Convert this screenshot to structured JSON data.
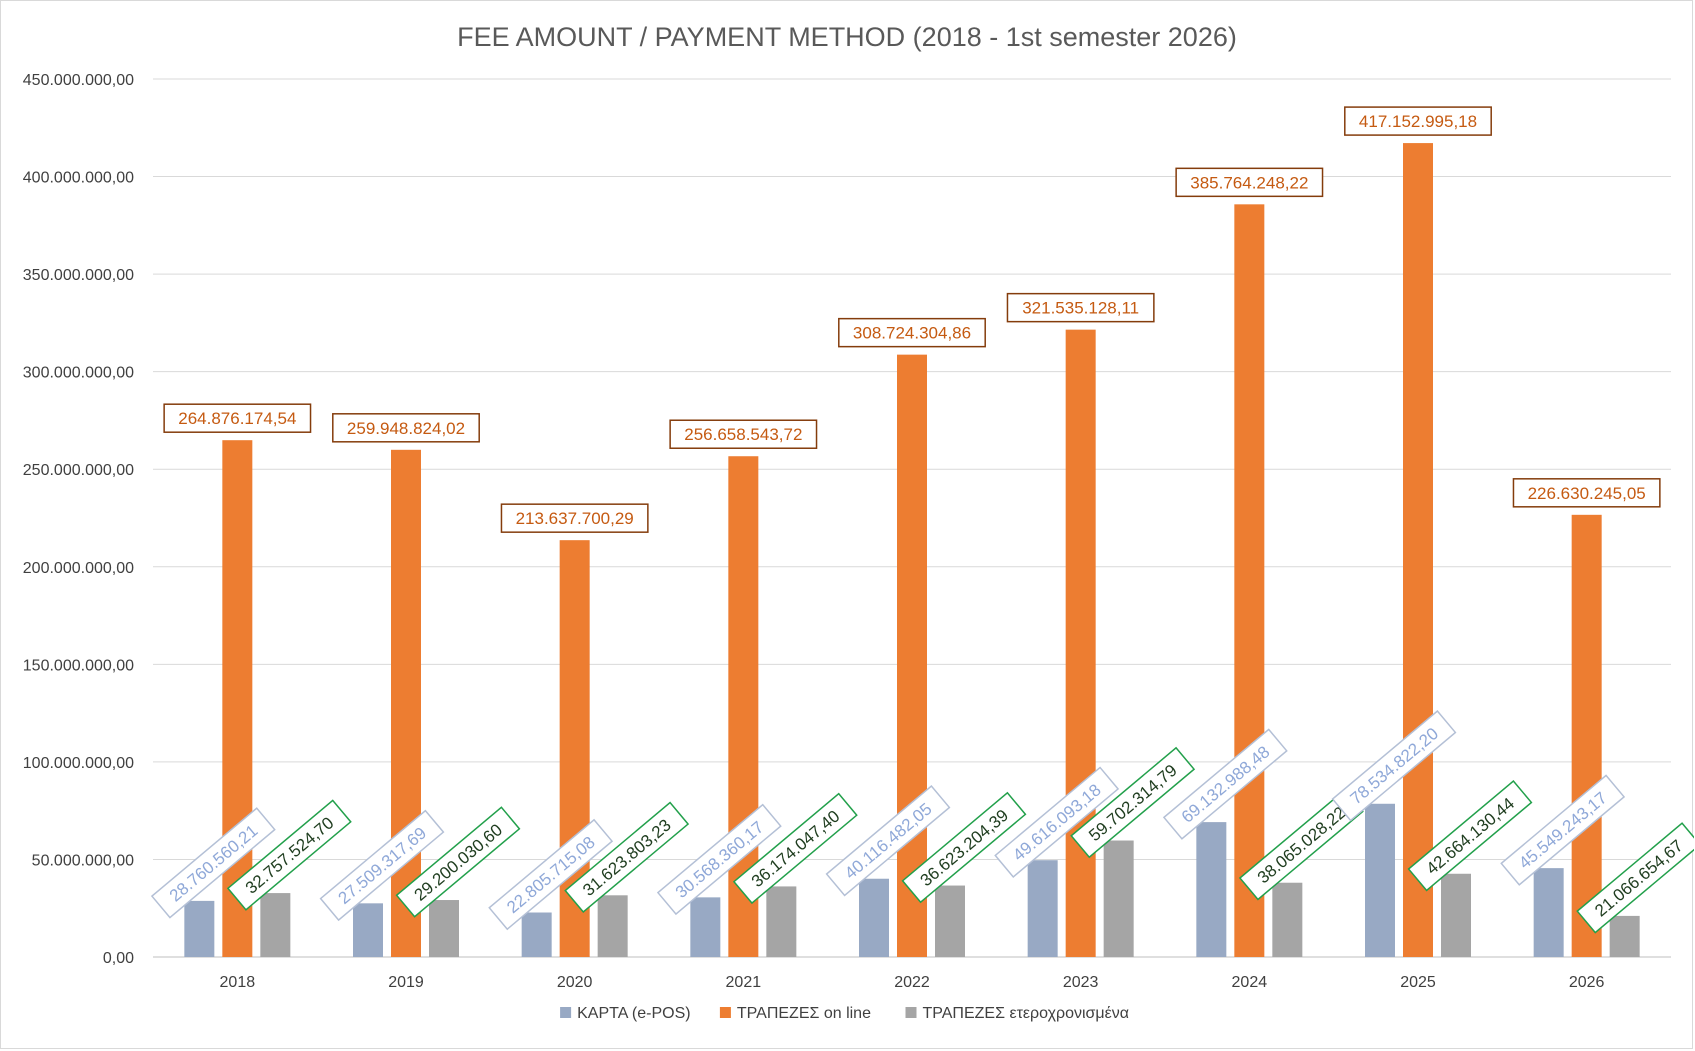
{
  "chart_data": {
    "type": "bar",
    "title": "FEE AMOUNT / PAYMENT METHOD (2018 - 1st semester 2026)",
    "xlabel": "",
    "ylabel": "",
    "ylim": [
      0,
      450000000
    ],
    "ytick_step": 50000000,
    "ytick_labels": [
      "0,00",
      "50.000.000,00",
      "100.000.000,00",
      "150.000.000,00",
      "200.000.000,00",
      "250.000.000,00",
      "300.000.000,00",
      "350.000.000,00",
      "400.000.000,00",
      "450.000.000,00"
    ],
    "grid": true,
    "legend_position": "bottom",
    "categories": [
      "2018",
      "2019",
      "2020",
      "2021",
      "2022",
      "2023",
      "2024",
      "2025",
      "2026"
    ],
    "series": [
      {
        "name": "ΚΑΡΤΑ (e-POS)",
        "color": "#98a9c4",
        "label_color": "#8fa8d8",
        "label_border": "#b4c0d6",
        "label_rotation": -40,
        "values": [
          28760560.21,
          27509317.69,
          22805715.08,
          30568360.17,
          40116482.05,
          49616093.18,
          69132988.48,
          78534822.2,
          45549243.17
        ],
        "labels": [
          "28.760.560,21",
          "27.509.317,69",
          "22.805.715,08",
          "30.568.360,17",
          "40.116.482,05",
          "49.616.093,18",
          "69.132.988,48",
          "78.534.822,20",
          "45.549.243,17"
        ]
      },
      {
        "name": "ΤΡΑΠΕΖΕΣ on line",
        "color": "#ed7d31",
        "label_color": "#c55a11",
        "label_border": "#843c0c",
        "label_rotation": 0,
        "values": [
          264876174.54,
          259948824.02,
          213637700.29,
          256658543.72,
          308724304.86,
          321535128.11,
          385764248.22,
          417152995.18,
          226630245.05
        ],
        "labels": [
          "264.876.174,54",
          "259.948.824,02",
          "213.637.700,29",
          "256.658.543,72",
          "308.724.304,86",
          "321.535.128,11",
          "385.764.248,22",
          "417.152.995,18",
          "226.630.245,05"
        ]
      },
      {
        "name": "ΤΡΑΠΕΖΕΣ ετεροχρονισμένα",
        "color": "#a5a5a5",
        "label_color": "#1f3d1f",
        "label_border": "#22a04b",
        "label_rotation": -40,
        "values": [
          32757524.7,
          29200030.6,
          31623803.23,
          36174047.4,
          36623204.39,
          59702314.79,
          38065028.22,
          42664130.44,
          21066654.67
        ],
        "labels": [
          "32.757.524,70",
          "29.200.030,60",
          "31.623.803,23",
          "36.174.047,40",
          "36.623.204,39",
          "59.702.314,79",
          "38.065.028,22",
          "42.664.130,44",
          "21.066.654,67"
        ]
      }
    ]
  }
}
